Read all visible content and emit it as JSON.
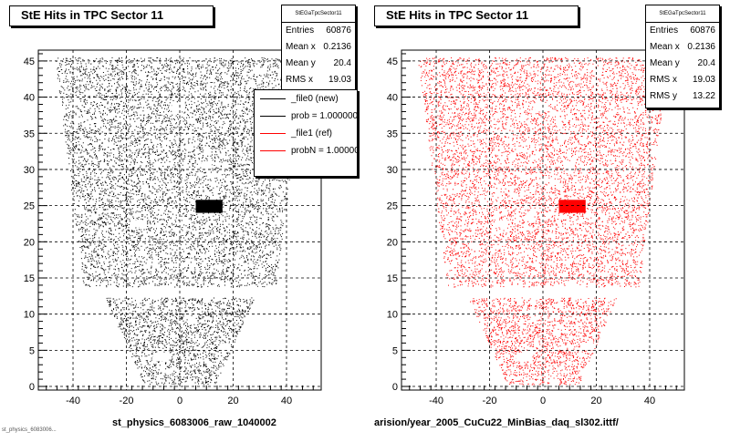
{
  "chart_data": [
    {
      "type": "scatter",
      "title": "StE Hits in TPC Sector 11",
      "xlabel": "st_physics_6083006_raw_1040002",
      "ylabel": "",
      "x_ticks": [
        -40,
        -20,
        0,
        20,
        40
      ],
      "y_ticks": [
        0,
        5,
        10,
        15,
        20,
        25,
        30,
        35,
        40,
        45
      ],
      "xlim": [
        -53,
        53
      ],
      "ylim": [
        -0.5,
        46.5
      ],
      "grid": true,
      "marker_color": "#000000",
      "stats": {
        "name": "StEGaTpcSector11",
        "rows": [
          {
            "label": "Entries",
            "value": "60876"
          },
          {
            "label": "Mean x",
            "value": "0.2136"
          },
          {
            "label": "Mean y",
            "value": "20.4"
          },
          {
            "label": "RMS x",
            "value": "19.03"
          }
        ]
      },
      "legend": {
        "placement": "top-right",
        "entries": [
          {
            "label": "_file0 (new)",
            "color": "#000000"
          },
          {
            "label": "prob = 1.000000",
            "color": "#000000"
          },
          {
            "label": "_file1 (ref)",
            "color": "#ff0000"
          },
          {
            "label": "probN = 1.000000",
            "color": "#ff0000"
          }
        ]
      }
    },
    {
      "type": "scatter",
      "title": "StE Hits in TPC Sector 11",
      "xlabel": "arision/year_2005_CuCu22_MinBias_daq_sl302.ittf/",
      "ylabel": "",
      "x_ticks": [
        -40,
        -20,
        0,
        20,
        40
      ],
      "y_ticks": [
        0,
        5,
        10,
        15,
        20,
        25,
        30,
        35,
        40,
        45
      ],
      "xlim": [
        -53,
        53
      ],
      "ylim": [
        -0.5,
        46.5
      ],
      "grid": true,
      "marker_color": "#ff0000",
      "stats": {
        "name": "StEGaTpcSector11",
        "rows": [
          {
            "label": "Entries",
            "value": "60876"
          },
          {
            "label": "Mean x",
            "value": "0.2136"
          },
          {
            "label": "Mean y",
            "value": "20.4"
          },
          {
            "label": "RMS x",
            "value": "19.03"
          },
          {
            "label": "RMS y",
            "value": "13.22"
          }
        ]
      }
    }
  ],
  "footer_note": "st_physics_6083006..."
}
